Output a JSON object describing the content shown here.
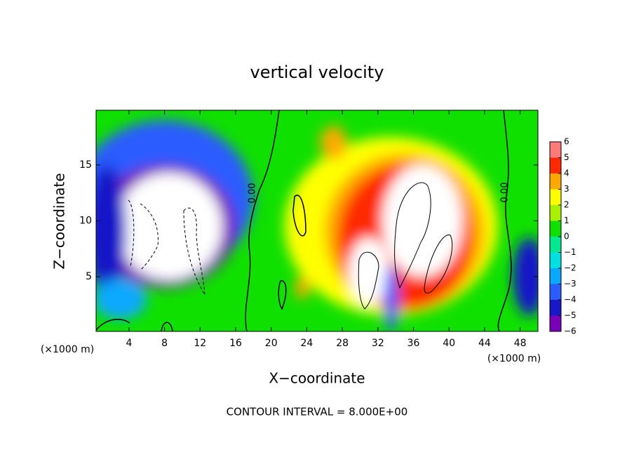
{
  "chart_data": {
    "type": "contour",
    "title": "vertical velocity",
    "x_label": "X−coordinate",
    "y_label": "Z−coordinate",
    "x_unit": "(×1000 m)",
    "footer": "CONTOUR INTERVAL = 8.000E+00",
    "contour_labels": [
      "0.00",
      "0.00"
    ],
    "xlim": [
      0.3,
      50
    ],
    "xticks": [
      4,
      8,
      12,
      16,
      20,
      24,
      28,
      32,
      36,
      40,
      44,
      48
    ],
    "ylim": [
      0.1,
      19.9
    ],
    "yticks": [
      5,
      10,
      15
    ],
    "background_value": 0,
    "levels": [
      -6,
      -5,
      -4,
      -3,
      -2,
      -1,
      0,
      1,
      2,
      3,
      4,
      5,
      6
    ],
    "level_labels": [
      {
        "value": -6,
        "label": "−6"
      },
      {
        "value": -5,
        "label": "−5"
      },
      {
        "value": -4,
        "label": "−4"
      },
      {
        "value": -3,
        "label": "−3"
      },
      {
        "value": -2,
        "label": "−2"
      },
      {
        "value": -1,
        "label": "−1"
      },
      0,
      1,
      2,
      3,
      4,
      5,
      6
    ],
    "band_colors": [
      "#7a00b8",
      "#1818c8",
      "#2a5cff",
      "#0aa8ff",
      "#00e0e0",
      "#00e890",
      "#10e000",
      "#a8f000",
      "#ffff00",
      "#ffa800",
      "#ff2a00",
      "#ff7a7a"
    ],
    "over_color": "#ffffff",
    "field": [
      {
        "x": 8,
        "z": 12,
        "rx": 10,
        "rz": 7,
        "value": -3.5
      },
      {
        "x": 8,
        "z": 9.5,
        "rx": 8,
        "rz": 5.5,
        "value": -5.5
      },
      {
        "x": 8.5,
        "z": 9.5,
        "rx": 6,
        "rz": 4.8,
        "value": -8
      },
      {
        "x": 1.5,
        "z": 9,
        "rx": 2.2,
        "rz": 6,
        "value": -4.5
      },
      {
        "x": 3,
        "z": 3,
        "rx": 3,
        "rz": 1.8,
        "value": -2.5
      },
      {
        "x": 49,
        "z": 5,
        "rx": 1.8,
        "rz": 3.5,
        "value": -4.5
      },
      {
        "x": 33.5,
        "z": 9.5,
        "rx": 12,
        "rz": 8,
        "value": 2
      },
      {
        "x": 35,
        "z": 9,
        "rx": 9,
        "rz": 7,
        "value": 3.5
      },
      {
        "x": 35,
        "z": 8.5,
        "rx": 7.5,
        "rz": 6.5,
        "value": 4.5
      },
      {
        "x": 27,
        "z": 17,
        "rx": 1.5,
        "rz": 1.5,
        "value": 3
      },
      {
        "x": 37,
        "z": 10,
        "rx": 4.5,
        "rz": 5,
        "value": 8
      },
      {
        "x": 31,
        "z": 5.5,
        "rx": 2.3,
        "rz": 3,
        "value": 8
      },
      {
        "x": 33.5,
        "z": 3,
        "rx": 0.8,
        "rz": 3,
        "value": -4
      },
      {
        "x": 23.5,
        "z": 4,
        "rx": 0.8,
        "rz": 1,
        "value": 3.5
      }
    ]
  }
}
